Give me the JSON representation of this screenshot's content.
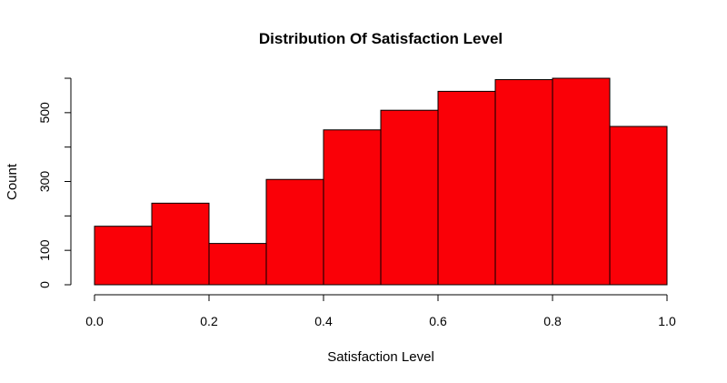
{
  "chart_data": {
    "type": "bar",
    "title": "Distribution Of Satisfaction Level",
    "xlabel": "Satisfaction Level",
    "ylabel": "Count",
    "bins": [
      {
        "start": 0.0,
        "end": 0.1,
        "count": 170
      },
      {
        "start": 0.1,
        "end": 0.2,
        "count": 237
      },
      {
        "start": 0.2,
        "end": 0.3,
        "count": 120
      },
      {
        "start": 0.3,
        "end": 0.4,
        "count": 306
      },
      {
        "start": 0.4,
        "end": 0.5,
        "count": 450
      },
      {
        "start": 0.5,
        "end": 0.6,
        "count": 507
      },
      {
        "start": 0.6,
        "end": 0.7,
        "count": 562
      },
      {
        "start": 0.7,
        "end": 0.8,
        "count": 596
      },
      {
        "start": 0.8,
        "end": 0.9,
        "count": 600
      },
      {
        "start": 0.9,
        "end": 1.0,
        "count": 460
      }
    ],
    "xlim": [
      0,
      1
    ],
    "ylim": [
      0,
      600
    ],
    "x_ticks": [
      0.0,
      0.2,
      0.4,
      0.6,
      0.8,
      1.0
    ],
    "x_tick_labels": [
      "0.0",
      "0.2",
      "0.4",
      "0.6",
      "0.8",
      "1.0"
    ],
    "y_ticks": [
      0,
      100,
      200,
      300,
      400,
      500,
      600
    ],
    "y_tick_labels": [
      "0",
      "100",
      "",
      "300",
      "",
      "500",
      ""
    ],
    "bar_color": "#fa0007",
    "grid": false
  }
}
